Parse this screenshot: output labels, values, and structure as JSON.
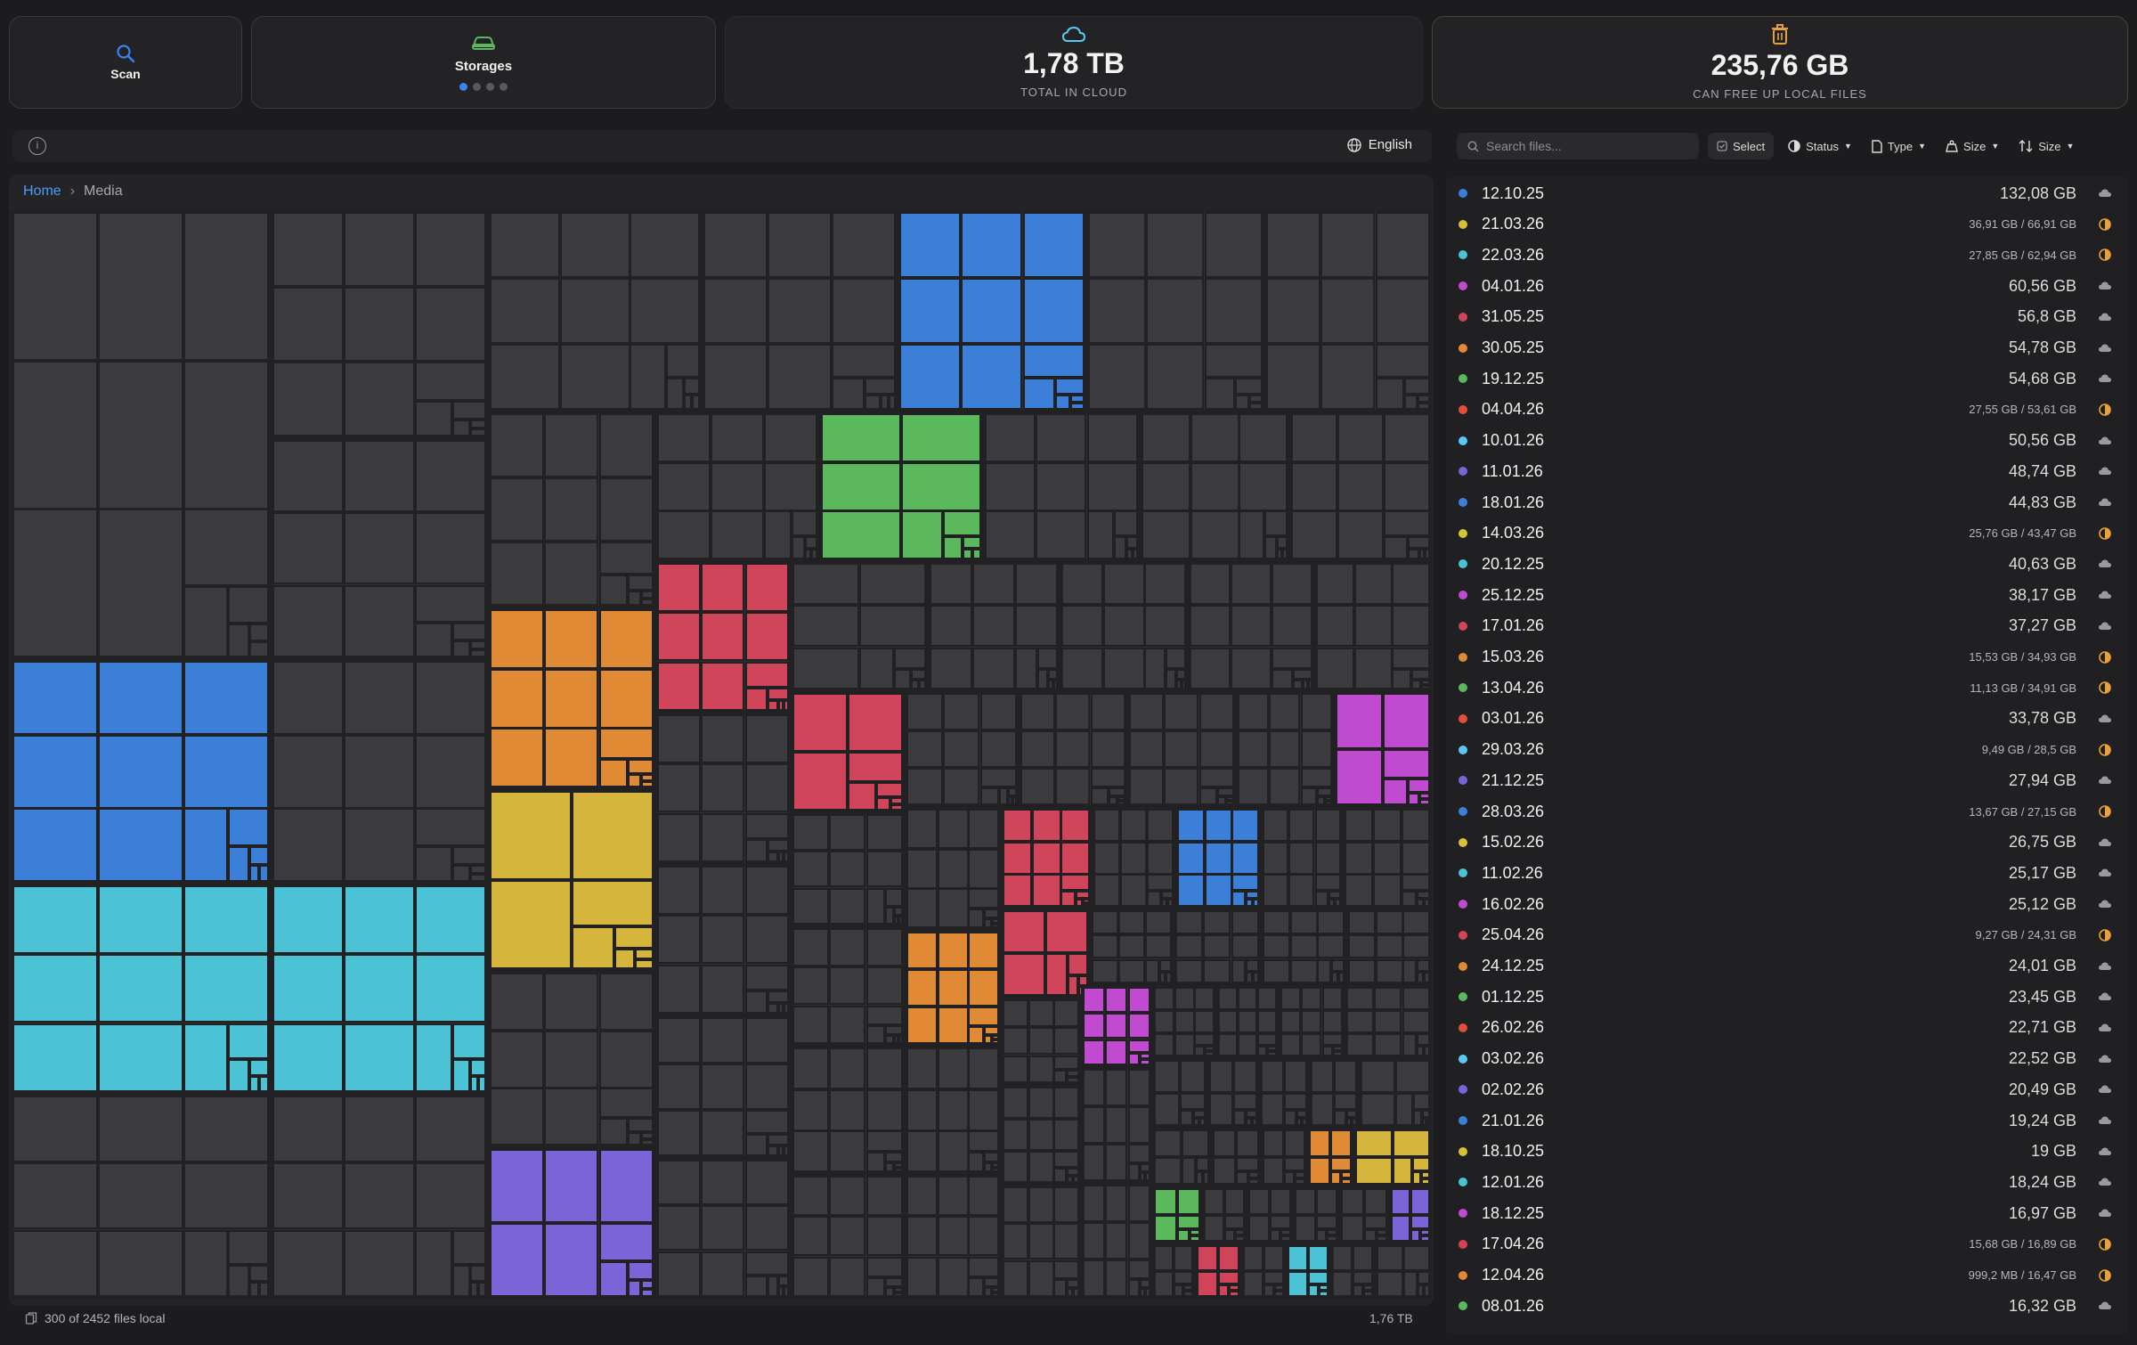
{
  "cards": {
    "scan_label": "Scan",
    "storages_label": "Storages",
    "cloud_value": "1,78 TB",
    "cloud_caption": "TOTAL IN CLOUD",
    "free_value": "235,76 GB",
    "free_caption": "CAN FREE UP LOCAL FILES"
  },
  "icons": [
    "search-icon",
    "car-icon",
    "cloud-icon",
    "trash-icon",
    "info-icon",
    "globe-icon",
    "checkbox-icon",
    "half-circle-icon",
    "file-icon",
    "weight-icon",
    "sort-icon",
    "chevron-down-icon"
  ],
  "toolbar": {
    "language": "English",
    "search_placeholder": "Search files...",
    "select": "Select",
    "status": "Status",
    "type": "Type",
    "size1": "Size",
    "size2": "Size"
  },
  "breadcrumb": {
    "home": "Home",
    "current": "Media"
  },
  "footer": {
    "files_local": "300 of 2452 files local",
    "total": "1,76 TB"
  },
  "colors": {
    "blue": "#3b7fd9",
    "yellow": "#d4b43a",
    "cyan": "#4cc3d4",
    "magenta": "#c04bd0",
    "red": "#d0455a",
    "orange": "#e08a36",
    "green": "#5cb85c",
    "purple": "#7b63d8",
    "cloud_status": "#9a9a9e",
    "partial_status": "#e8a13a"
  },
  "files": [
    {
      "date": "12.10.25",
      "size": "132,08 GB",
      "dot": "#3b7fd9",
      "status": "cloud"
    },
    {
      "date": "21.03.26",
      "size": "36,91 GB / 66,91 GB",
      "dot": "#d4c23a",
      "status": "partial"
    },
    {
      "date": "22.03.26",
      "size": "27,85 GB / 62,94 GB",
      "dot": "#4cc3d4",
      "status": "partial"
    },
    {
      "date": "04.01.26",
      "size": "60,56 GB",
      "dot": "#c04bd0",
      "status": "cloud"
    },
    {
      "date": "31.05.25",
      "size": "56,8 GB",
      "dot": "#d0455a",
      "status": "cloud"
    },
    {
      "date": "30.05.25",
      "size": "54,78 GB",
      "dot": "#e08a36",
      "status": "cloud"
    },
    {
      "date": "19.12.25",
      "size": "54,68 GB",
      "dot": "#5cb85c",
      "status": "cloud"
    },
    {
      "date": "04.04.26",
      "size": "27,55 GB / 53,61 GB",
      "dot": "#e0503a",
      "status": "partial"
    },
    {
      "date": "10.01.26",
      "size": "50,56 GB",
      "dot": "#5ac8f5",
      "status": "cloud"
    },
    {
      "date": "11.01.26",
      "size": "48,74 GB",
      "dot": "#7b63d8",
      "status": "cloud"
    },
    {
      "date": "18.01.26",
      "size": "44,83 GB",
      "dot": "#3b7fd9",
      "status": "cloud"
    },
    {
      "date": "14.03.26",
      "size": "25,76 GB / 43,47 GB",
      "dot": "#d4c23a",
      "status": "partial"
    },
    {
      "date": "20.12.25",
      "size": "40,63 GB",
      "dot": "#4cc3d4",
      "status": "cloud"
    },
    {
      "date": "25.12.25",
      "size": "38,17 GB",
      "dot": "#c04bd0",
      "status": "cloud"
    },
    {
      "date": "17.01.26",
      "size": "37,27 GB",
      "dot": "#d0455a",
      "status": "cloud"
    },
    {
      "date": "15.03.26",
      "size": "15,53 GB / 34,93 GB",
      "dot": "#e08a36",
      "status": "partial"
    },
    {
      "date": "13.04.26",
      "size": "11,13 GB / 34,91 GB",
      "dot": "#5cb85c",
      "status": "partial"
    },
    {
      "date": "03.01.26",
      "size": "33,78 GB",
      "dot": "#e0503a",
      "status": "cloud"
    },
    {
      "date": "29.03.26",
      "size": "9,49 GB / 28,5 GB",
      "dot": "#5ac8f5",
      "status": "partial"
    },
    {
      "date": "21.12.25",
      "size": "27,94 GB",
      "dot": "#7b63d8",
      "status": "cloud"
    },
    {
      "date": "28.03.26",
      "size": "13,67 GB / 27,15 GB",
      "dot": "#3b7fd9",
      "status": "partial"
    },
    {
      "date": "15.02.26",
      "size": "26,75 GB",
      "dot": "#d4c23a",
      "status": "cloud"
    },
    {
      "date": "11.02.26",
      "size": "25,17 GB",
      "dot": "#4cc3d4",
      "status": "cloud"
    },
    {
      "date": "16.02.26",
      "size": "25,12 GB",
      "dot": "#c04bd0",
      "status": "cloud"
    },
    {
      "date": "25.04.26",
      "size": "9,27 GB / 24,31 GB",
      "dot": "#d0455a",
      "status": "partial"
    },
    {
      "date": "24.12.25",
      "size": "24,01 GB",
      "dot": "#e08a36",
      "status": "cloud"
    },
    {
      "date": "01.12.25",
      "size": "23,45 GB",
      "dot": "#5cb85c",
      "status": "cloud"
    },
    {
      "date": "26.02.26",
      "size": "22,71 GB",
      "dot": "#e0503a",
      "status": "cloud"
    },
    {
      "date": "03.02.26",
      "size": "22,52 GB",
      "dot": "#5ac8f5",
      "status": "cloud"
    },
    {
      "date": "02.02.26",
      "size": "20,49 GB",
      "dot": "#7b63d8",
      "status": "cloud"
    },
    {
      "date": "21.01.26",
      "size": "19,24 GB",
      "dot": "#3b7fd9",
      "status": "cloud"
    },
    {
      "date": "18.10.25",
      "size": "19 GB",
      "dot": "#d4c23a",
      "status": "cloud"
    },
    {
      "date": "12.01.26",
      "size": "18,24 GB",
      "dot": "#4cc3d4",
      "status": "cloud"
    },
    {
      "date": "18.12.25",
      "size": "16,97 GB",
      "dot": "#c04bd0",
      "status": "cloud"
    },
    {
      "date": "17.04.26",
      "size": "15,68 GB / 16,89 GB",
      "dot": "#d0455a",
      "status": "partial"
    },
    {
      "date": "12.04.26",
      "size": "999,2 MB / 16,47 GB",
      "dot": "#e08a36",
      "status": "partial"
    },
    {
      "date": "08.01.26",
      "size": "16,32 GB",
      "dot": "#5cb85c",
      "status": "cloud"
    }
  ]
}
